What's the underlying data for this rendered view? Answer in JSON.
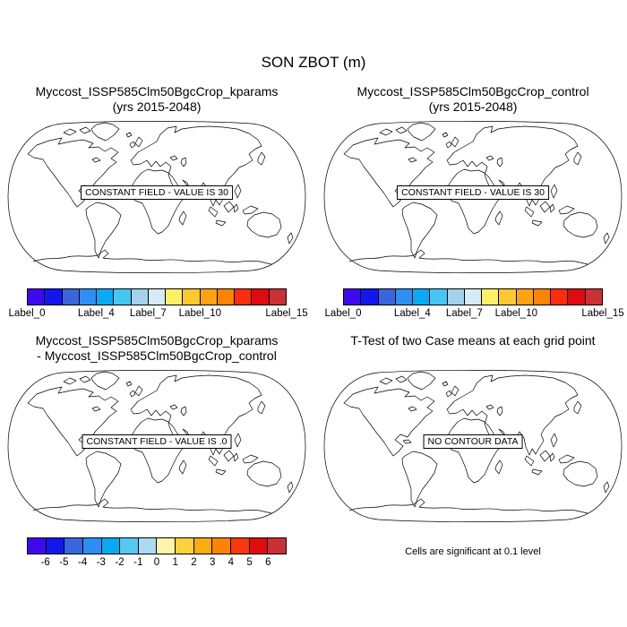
{
  "page_title": "SON ZBOT (m)",
  "panels": [
    {
      "title_line1": "Myccost_ISSP585Clm50BgcCrop_kparams",
      "title_line2": "(yrs 2015-2048)",
      "overlay": "CONSTANT FIELD - VALUE IS 30"
    },
    {
      "title_line1": "Myccost_ISSP585Clm50BgcCrop_control",
      "title_line2": "(yrs 2015-2048)",
      "overlay": "CONSTANT FIELD - VALUE IS 30"
    },
    {
      "title_line1": "Myccost_ISSP585Clm50BgcCrop_kparams",
      "title_line2": "- Myccost_ISSP585Clm50BgcCrop_control",
      "overlay": "CONSTANT FIELD - VALUE IS .0"
    },
    {
      "title_line1": "T-Test of two Case means at each grid point",
      "title_line2": "",
      "overlay": "NO CONTOUR DATA",
      "caption": "Cells are significant at 0.1 level"
    }
  ],
  "colorbars": {
    "case": {
      "colors": [
        "#3f09ee",
        "#1218eb",
        "#3a66dd",
        "#2f8ef2",
        "#09aaf3",
        "#46c6f2",
        "#a4d2e9",
        "#d6ebf7",
        "#faf167",
        "#fcc92f",
        "#fda313",
        "#fb8306",
        "#fa2d0e",
        "#dd0a10",
        "#ca3136"
      ],
      "ticks": [
        {
          "pos": 0,
          "label": "Label_0"
        },
        {
          "pos": 4,
          "label": "Label_4"
        },
        {
          "pos": 7,
          "label": "Label_7"
        },
        {
          "pos": 10,
          "label": "Label_10"
        },
        {
          "pos": 15,
          "label": "Label_15"
        }
      ]
    },
    "diff": {
      "colors": [
        "#3f09ee",
        "#1218eb",
        "#3a66dd",
        "#2f8ef2",
        "#09aaf3",
        "#55c9f0",
        "#abdaf2",
        "#fdf6a8",
        "#fcd23a",
        "#fcab12",
        "#fb8406",
        "#fa3a0c",
        "#e00d10",
        "#ca3136"
      ],
      "ticks": [
        {
          "pos": 1,
          "label": "-6"
        },
        {
          "pos": 2,
          "label": "-5"
        },
        {
          "pos": 3,
          "label": "-4"
        },
        {
          "pos": 4,
          "label": "-3"
        },
        {
          "pos": 5,
          "label": "-2"
        },
        {
          "pos": 6,
          "label": "-1"
        },
        {
          "pos": 7,
          "label": "0"
        },
        {
          "pos": 8,
          "label": "1"
        },
        {
          "pos": 9,
          "label": "2"
        },
        {
          "pos": 10,
          "label": "3"
        },
        {
          "pos": 11,
          "label": "4"
        },
        {
          "pos": 12,
          "label": "5"
        },
        {
          "pos": 13,
          "label": "6"
        }
      ]
    }
  },
  "chart_data": [
    {
      "type": "map",
      "projection": "robinson",
      "variable": "SON ZBOT (m)",
      "title": "Myccost_ISSP585Clm50BgcCrop_kparams (yrs 2015-2048)",
      "field": "constant",
      "constant_value": 30,
      "annotation": "CONSTANT FIELD - VALUE IS 30",
      "colorbar_tick_labels": [
        "Label_0",
        "Label_4",
        "Label_7",
        "Label_10",
        "Label_15"
      ],
      "colorbar_n_colors": 15
    },
    {
      "type": "map",
      "projection": "robinson",
      "variable": "SON ZBOT (m)",
      "title": "Myccost_ISSP585Clm50BgcCrop_control (yrs 2015-2048)",
      "field": "constant",
      "constant_value": 30,
      "annotation": "CONSTANT FIELD - VALUE IS 30",
      "colorbar_tick_labels": [
        "Label_0",
        "Label_4",
        "Label_7",
        "Label_10",
        "Label_15"
      ],
      "colorbar_n_colors": 15
    },
    {
      "type": "map",
      "projection": "robinson",
      "variable": "SON ZBOT (m)",
      "title": "Myccost_ISSP585Clm50BgcCrop_kparams - Myccost_ISSP585Clm50BgcCrop_control",
      "field": "constant",
      "constant_value": 0.0,
      "annotation": "CONSTANT FIELD - VALUE IS .0",
      "colorbar_tick_labels": [
        "-6",
        "-5",
        "-4",
        "-3",
        "-2",
        "-1",
        "0",
        "1",
        "2",
        "3",
        "4",
        "5",
        "6"
      ],
      "colorbar_n_colors": 14
    },
    {
      "type": "map",
      "projection": "robinson",
      "title": "T-Test of two Case means at each grid point",
      "field": "none",
      "annotation": "NO CONTOUR DATA",
      "caption": "Cells are significant at 0.1 level"
    }
  ]
}
